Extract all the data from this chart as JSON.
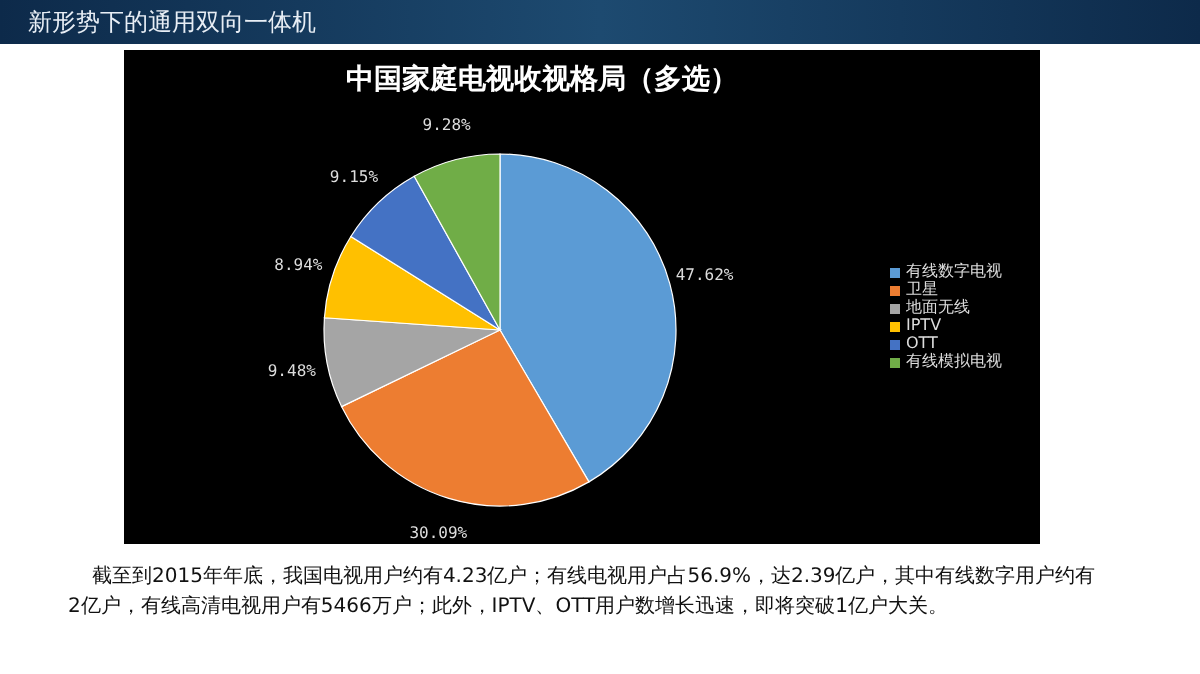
{
  "chart_data": {
    "type": "pie",
    "title": "中国家庭电视收视格局（多选）",
    "categories": [
      "有线数字电视",
      "卫星",
      "地面无线",
      "IPTV",
      "OTT",
      "有线模拟电视"
    ],
    "values": [
      47.62,
      30.09,
      9.48,
      8.94,
      9.15,
      9.28
    ],
    "value_labels": [
      "47.62%",
      "30.09%",
      "9.48%",
      "8.94%",
      "9.15%",
      "9.28%"
    ],
    "colors": [
      "#5b9bd5",
      "#ed7d31",
      "#a5a5a5",
      "#ffc000",
      "#4472c4",
      "#70ad47"
    ],
    "legend": "right",
    "annotations": [
      "新形势下的通用双向一体机",
      "截至到2015年年底，我国电视用户约有4.23亿户；有线电视用户占56.9%，达2.39亿户，其中有线数字用户约有2亿户，有线高清电视用户有5466万户；此外，IPTV、OTT用户数增长迅速，即将突破1亿户大关。"
    ]
  }
}
